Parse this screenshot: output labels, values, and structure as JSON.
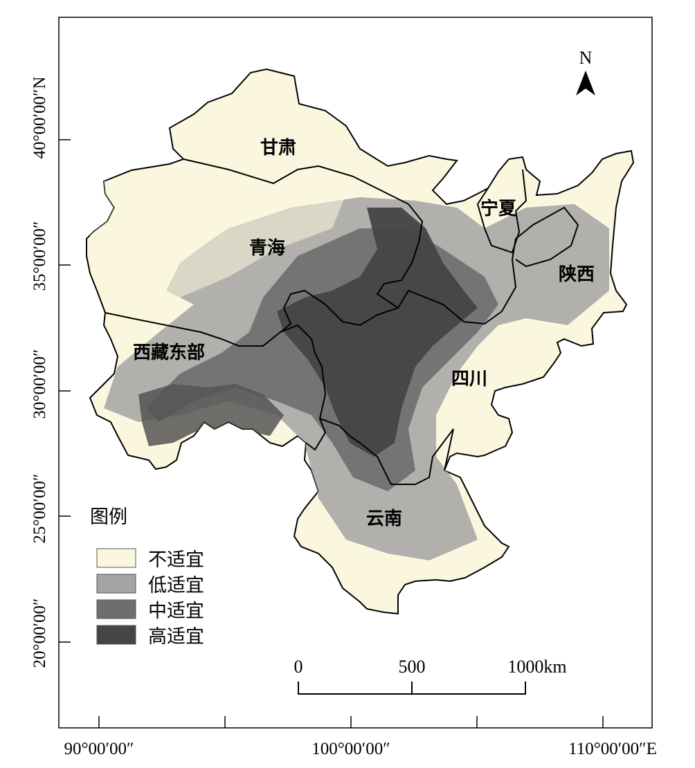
{
  "map": {
    "axes": {
      "x_ticks": [
        {
          "label": "90°00′00″",
          "id": "x-tick-90"
        },
        {
          "label": "100°00′00″",
          "id": "x-tick-100"
        },
        {
          "label": "110°00′00″E",
          "id": "x-tick-110"
        }
      ],
      "y_ticks": [
        {
          "label": "40°00′00″N",
          "id": "y-tick-40"
        },
        {
          "label": "35°00′00″",
          "id": "y-tick-35"
        },
        {
          "label": "30°00′00″",
          "id": "y-tick-30"
        },
        {
          "label": "25°00′00″",
          "id": "y-tick-25"
        },
        {
          "label": "20°00′00″",
          "id": "y-tick-20"
        }
      ]
    },
    "provinces": {
      "gansu": "甘肃",
      "qinghai": "青海",
      "ningxia": "宁夏",
      "shaanxi": "陕西",
      "xizang_east": "西藏东部",
      "sichuan": "四川",
      "yunnan": "云南"
    },
    "north_arrow": "N",
    "scale_bar": {
      "labels": [
        "0",
        "500",
        "1000km"
      ]
    },
    "legend": {
      "title": "图例",
      "items": [
        {
          "label": "不适宜",
          "color": "#fbf7df"
        },
        {
          "label": "低适宜",
          "color": "#a3a3a3"
        },
        {
          "label": "中适宜",
          "color": "#6e6e6e"
        },
        {
          "label": "高适宜",
          "color": "#454545"
        }
      ]
    },
    "colors": {
      "unsuitable": "#fbf7df",
      "low": "#a3a3a3",
      "medium": "#6e6e6e",
      "high": "#454545",
      "border": "#000000"
    }
  }
}
